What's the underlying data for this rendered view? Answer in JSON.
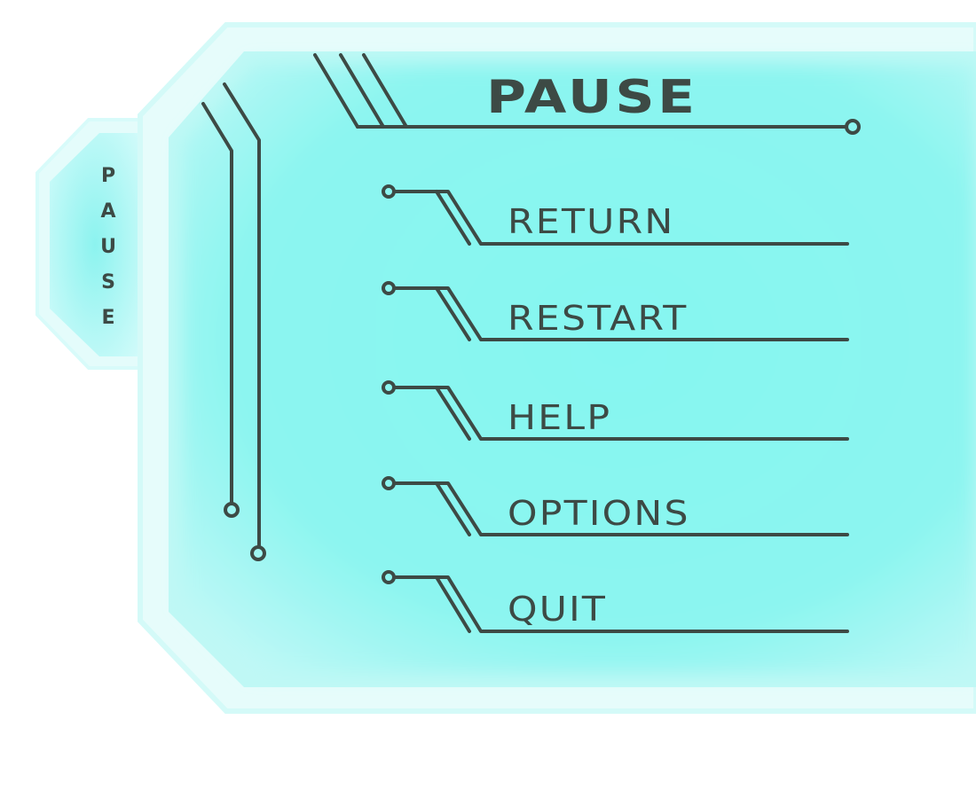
{
  "side_tab": {
    "letters": [
      "P",
      "A",
      "U",
      "S",
      "E"
    ]
  },
  "title": "PAUSE",
  "menu": [
    {
      "label": "RETURN"
    },
    {
      "label": "RESTART"
    },
    {
      "label": "HELP"
    },
    {
      "label": "OPTIONS"
    },
    {
      "label": "QUIT"
    }
  ],
  "colors": {
    "panel_fill": "#8af5f0",
    "panel_glow": "#d8fbfa",
    "ink": "#3d4a45"
  }
}
